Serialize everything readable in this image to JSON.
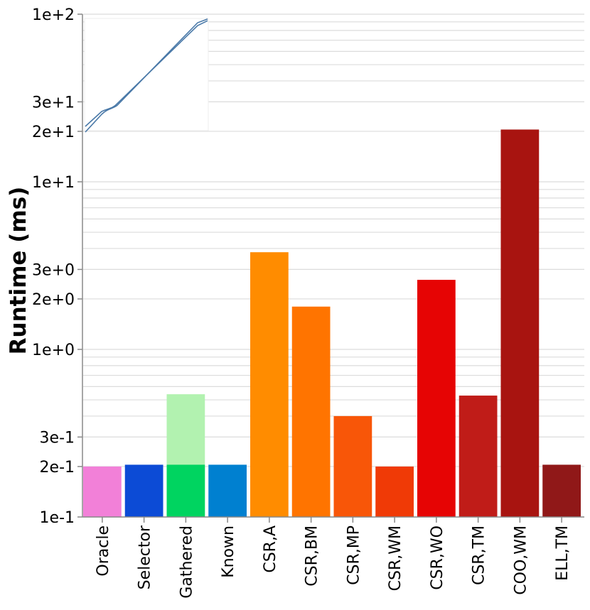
{
  "chart_data": {
    "type": "bar",
    "ylabel": "Runtime (ms)",
    "yscale": "log",
    "ylim": [
      0.1,
      100
    ],
    "ytick_labels": [
      {
        "value": 0.1,
        "label": "1e-1"
      },
      {
        "value": 0.2,
        "label": "2e-1"
      },
      {
        "value": 0.3,
        "label": "3e-1"
      },
      {
        "value": 1,
        "label": "1e+0"
      },
      {
        "value": 2,
        "label": "2e+0"
      },
      {
        "value": 3,
        "label": "3e+0"
      },
      {
        "value": 10,
        "label": "1e+1"
      },
      {
        "value": 20,
        "label": "2e+1"
      },
      {
        "value": 30,
        "label": "3e+1"
      },
      {
        "value": 100,
        "label": "1e+2"
      }
    ],
    "grid": true,
    "categories": [
      "Oracle",
      "Selector",
      "Gathered",
      "Known",
      "CSR,A",
      "CSR,BM",
      "CSR,MP",
      "CSR,WM",
      "CSR,WO",
      "CSR,TM",
      "COO,WM",
      "ELL,TM"
    ],
    "values": [
      0.2,
      0.205,
      0.205,
      0.205,
      3.8,
      1.8,
      0.4,
      0.2,
      2.6,
      0.53,
      20.5,
      0.205
    ],
    "overlay_bar": {
      "category": "Gathered",
      "value": 0.54,
      "color": "#b2f2b0"
    },
    "colors": [
      "#f280d8",
      "#0c4bd6",
      "#00d460",
      "#0080d0",
      "#ff8c00",
      "#ff7400",
      "#f85608",
      "#f03a06",
      "#e60404",
      "#c01c18",
      "#a81410",
      "#901818"
    ],
    "inset": {
      "type": "spy-plot",
      "color": "#4a79a8"
    }
  }
}
